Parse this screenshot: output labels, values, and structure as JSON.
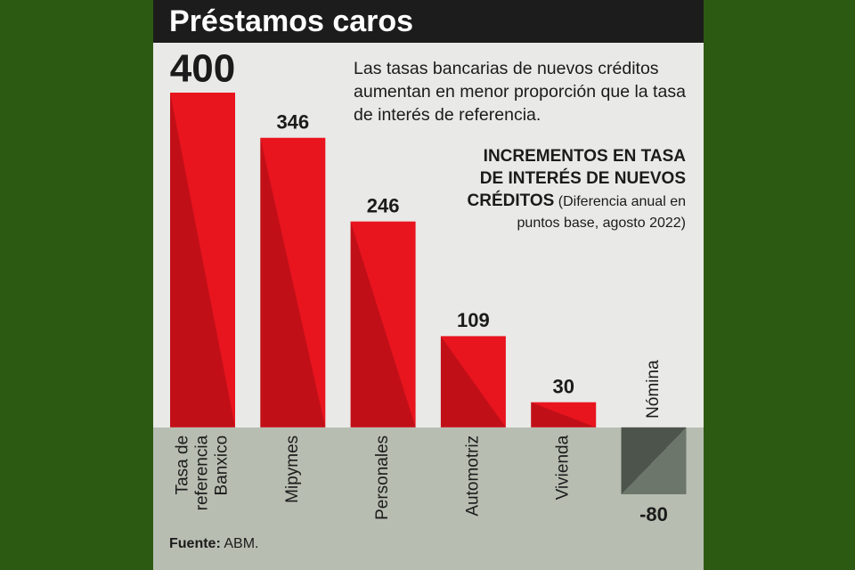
{
  "chart_data": {
    "type": "bar",
    "title": "Préstamos caros",
    "subtitle": "Las tasas bancarias de nuevos créditos aumentan en menor proporción que la tasa de interés de referencia.",
    "annotation_heading": "INCREMENTOS EN TASA DE INTERÉS DE NUEVOS CRÉDITOS",
    "annotation_note": "(Diferencia anual en puntos base, agosto 2022)",
    "categories": [
      "Tasa de\nreferencia\nBanxico",
      "Mipymes",
      "Personales",
      "Automotriz",
      "Vivienda",
      "Nómina"
    ],
    "values": [
      400,
      346,
      246,
      109,
      30,
      -80
    ],
    "ylim": [
      -80,
      400
    ],
    "color": "#e8141e",
    "shade_color": "#c10f18",
    "negative_color": "#6d766b",
    "negative_shade_color": "#4d544b",
    "source_label": "Fuente:",
    "source": "ABM."
  }
}
